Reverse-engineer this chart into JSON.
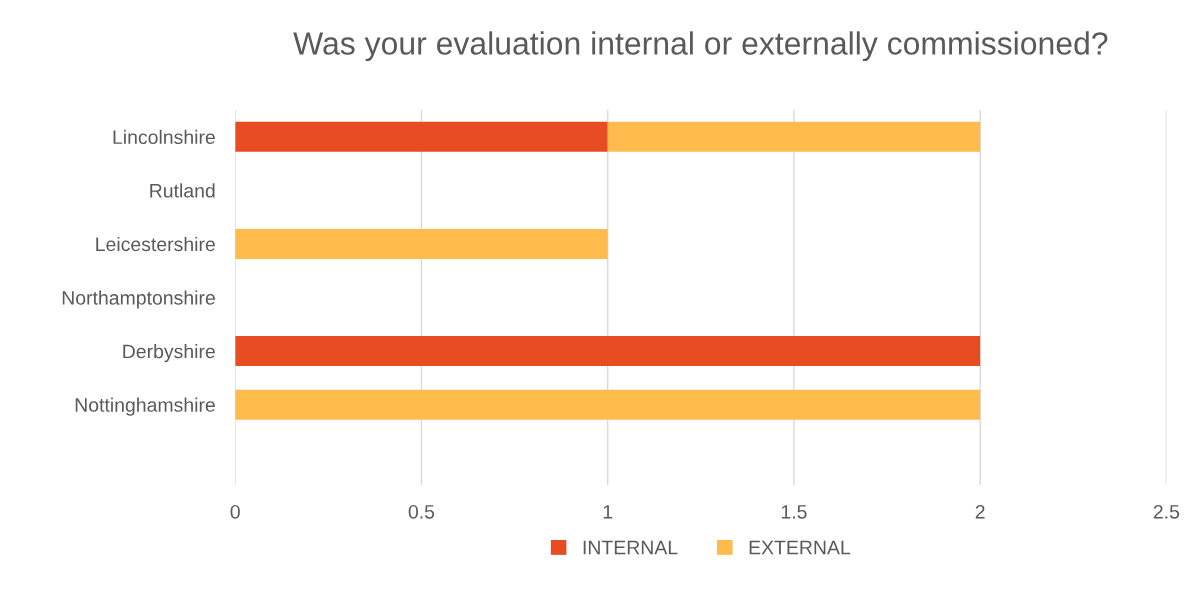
{
  "chart_data": {
    "type": "bar",
    "orientation": "horizontal",
    "stacked": true,
    "title": "Was your evaluation internal or externally commissioned?",
    "categories": [
      "Lincolnshire",
      "Rutland",
      "Leicestershire",
      "Northamptonshire",
      "Derbyshire",
      "Nottinghamshire",
      null
    ],
    "series": [
      {
        "name": "INTERNAL",
        "color": "#e84c22",
        "values": [
          1,
          null,
          null,
          null,
          2,
          null,
          null
        ]
      },
      {
        "name": "EXTERNAL",
        "color": "#ffbb4b",
        "values": [
          1,
          null,
          1,
          null,
          null,
          2,
          null
        ]
      }
    ],
    "xlim": [
      0,
      2.5
    ],
    "xticks": [
      0,
      0.5,
      1,
      1.5,
      2,
      2.5
    ],
    "grid": "x",
    "legend": "bottom"
  }
}
